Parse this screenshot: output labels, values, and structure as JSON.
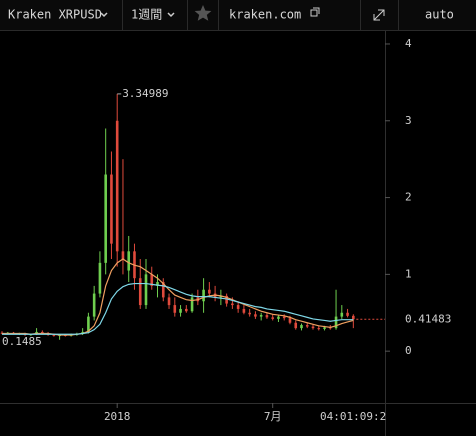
{
  "toolbar": {
    "market": "Kraken XRPUSD",
    "period": "1週間",
    "site": "kraken.com",
    "scale": "auto"
  },
  "chart_data": {
    "type": "candlestick",
    "up_color": "#6fcf4f",
    "down_color": "#e04a3c",
    "open": [
      0.24,
      0.23,
      0.24,
      0.22,
      0.23,
      0.21,
      0.22,
      0.25,
      0.23,
      0.21,
      0.2,
      0.21,
      0.2,
      0.22,
      0.23,
      0.25,
      0.45,
      0.75,
      1.15,
      2.3,
      3.0,
      1.3,
      1.05,
      1.3,
      0.95,
      0.6,
      1.0,
      0.85,
      0.9,
      0.7,
      0.6,
      0.5,
      0.55,
      0.52,
      0.7,
      0.65,
      0.8,
      0.75,
      0.7,
      0.72,
      0.62,
      0.6,
      0.55,
      0.5,
      0.48,
      0.45,
      0.47,
      0.44,
      0.42,
      0.45,
      0.43,
      0.37,
      0.3,
      0.34,
      0.32,
      0.3,
      0.29,
      0.31,
      0.3,
      0.45,
      0.5,
      0.46
    ],
    "high": [
      0.26,
      0.25,
      0.25,
      0.24,
      0.24,
      0.23,
      0.3,
      0.27,
      0.25,
      0.23,
      0.22,
      0.22,
      0.23,
      0.24,
      0.3,
      0.5,
      0.85,
      1.3,
      2.9,
      2.6,
      3.34989,
      2.5,
      1.5,
      1.4,
      1.2,
      1.2,
      1.1,
      1.0,
      0.95,
      0.75,
      0.7,
      0.6,
      0.6,
      0.75,
      0.8,
      0.95,
      0.9,
      0.85,
      0.8,
      0.75,
      0.7,
      0.65,
      0.6,
      0.55,
      0.52,
      0.5,
      0.5,
      0.48,
      0.47,
      0.48,
      0.46,
      0.4,
      0.36,
      0.37,
      0.35,
      0.33,
      0.33,
      0.34,
      0.8,
      0.6,
      0.55,
      0.48
    ],
    "low": [
      0.22,
      0.22,
      0.22,
      0.21,
      0.2,
      0.2,
      0.21,
      0.22,
      0.2,
      0.19,
      0.1485,
      0.19,
      0.19,
      0.2,
      0.21,
      0.23,
      0.4,
      0.7,
      1.0,
      1.2,
      1.1,
      1.0,
      0.9,
      0.8,
      0.55,
      0.55,
      0.8,
      0.7,
      0.65,
      0.55,
      0.45,
      0.45,
      0.5,
      0.5,
      0.6,
      0.5,
      0.7,
      0.65,
      0.6,
      0.58,
      0.55,
      0.5,
      0.48,
      0.45,
      0.42,
      0.4,
      0.42,
      0.4,
      0.38,
      0.4,
      0.35,
      0.28,
      0.27,
      0.3,
      0.28,
      0.27,
      0.27,
      0.28,
      0.28,
      0.42,
      0.44,
      0.3
    ],
    "close": [
      0.23,
      0.24,
      0.22,
      0.23,
      0.21,
      0.22,
      0.25,
      0.23,
      0.21,
      0.2,
      0.21,
      0.2,
      0.22,
      0.23,
      0.25,
      0.45,
      0.75,
      1.15,
      2.3,
      1.4,
      1.3,
      1.2,
      1.3,
      0.95,
      0.6,
      1.0,
      0.85,
      0.9,
      0.7,
      0.6,
      0.5,
      0.55,
      0.52,
      0.7,
      0.65,
      0.8,
      0.75,
      0.7,
      0.72,
      0.62,
      0.6,
      0.55,
      0.5,
      0.48,
      0.45,
      0.47,
      0.44,
      0.42,
      0.45,
      0.43,
      0.37,
      0.3,
      0.34,
      0.32,
      0.3,
      0.29,
      0.31,
      0.3,
      0.45,
      0.5,
      0.46,
      0.41483
    ],
    "moving_averages": [
      {
        "color": "#f0a060",
        "values": [
          0.23,
          0.23,
          0.23,
          0.23,
          0.23,
          0.22,
          0.23,
          0.23,
          0.23,
          0.22,
          0.21,
          0.21,
          0.21,
          0.22,
          0.23,
          0.26,
          0.33,
          0.5,
          0.85,
          1.05,
          1.15,
          1.2,
          1.15,
          1.12,
          1.1,
          1.05,
          1.0,
          0.95,
          0.88,
          0.8,
          0.73,
          0.7,
          0.67,
          0.66,
          0.67,
          0.7,
          0.72,
          0.73,
          0.72,
          0.7,
          0.67,
          0.64,
          0.61,
          0.58,
          0.55,
          0.52,
          0.5,
          0.48,
          0.47,
          0.46,
          0.44,
          0.41,
          0.39,
          0.37,
          0.35,
          0.33,
          0.32,
          0.31,
          0.33,
          0.36,
          0.38,
          0.4
        ]
      },
      {
        "color": "#7fd8e8",
        "values": [
          0.22,
          0.22,
          0.22,
          0.22,
          0.22,
          0.22,
          0.22,
          0.22,
          0.22,
          0.22,
          0.22,
          0.22,
          0.22,
          0.22,
          0.23,
          0.24,
          0.28,
          0.35,
          0.5,
          0.68,
          0.78,
          0.84,
          0.87,
          0.88,
          0.88,
          0.88,
          0.87,
          0.86,
          0.85,
          0.83,
          0.8,
          0.77,
          0.74,
          0.72,
          0.71,
          0.71,
          0.71,
          0.7,
          0.69,
          0.68,
          0.66,
          0.64,
          0.62,
          0.6,
          0.58,
          0.57,
          0.55,
          0.54,
          0.53,
          0.52,
          0.5,
          0.48,
          0.46,
          0.44,
          0.42,
          0.41,
          0.4,
          0.39,
          0.4,
          0.41,
          0.41,
          0.41
        ]
      }
    ],
    "ylim": [
      -0.675,
      4.169
    ],
    "yticks": [
      0,
      1,
      2,
      3,
      4
    ],
    "xlim": [
      -0.35,
      66.5
    ],
    "xticks": [
      {
        "value": 20,
        "label": "2018"
      },
      {
        "value": 47,
        "label": "7月"
      }
    ],
    "countdown": "04:01:09:2"
  }
}
